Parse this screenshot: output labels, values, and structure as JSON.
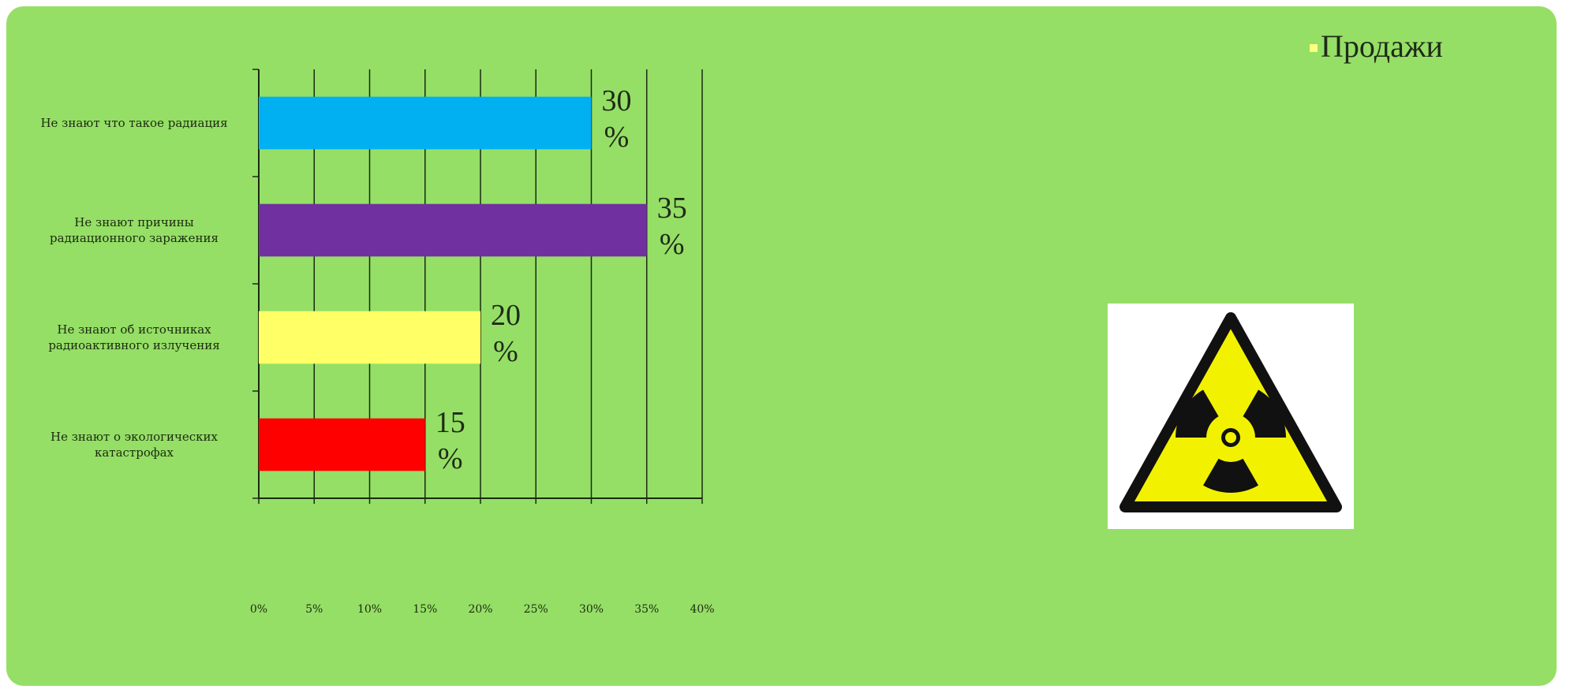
{
  "chart_data": {
    "type": "bar",
    "orientation": "horizontal",
    "categories": [
      "Не знают что такое радиация",
      "Не знают причины\nрадиационного заражения",
      "Не знают об источниках\nрадиоактивного излучения",
      "Не знают о экологических\nкатастрофах"
    ],
    "values": [
      30,
      35,
      20,
      15
    ],
    "data_labels": [
      "30\n%",
      "35\n%",
      "20\n%",
      "15\n%"
    ],
    "colors": [
      "#00b0f0",
      "#7030a0",
      "#ffff66",
      "#ff0000"
    ],
    "xlim": [
      0,
      40
    ],
    "xticks": [
      "0%",
      "5%",
      "10%",
      "15%",
      "20%",
      "25%",
      "30%",
      "35%",
      "40%"
    ],
    "grid": "vertical",
    "legend": {
      "label": "Продажи",
      "placement": "top-right",
      "color": "#ffff80"
    }
  },
  "theme": {
    "background": "#95df66",
    "gridline": "#1a2a12"
  },
  "icons": {
    "hazard": "radiation-warning-icon"
  }
}
